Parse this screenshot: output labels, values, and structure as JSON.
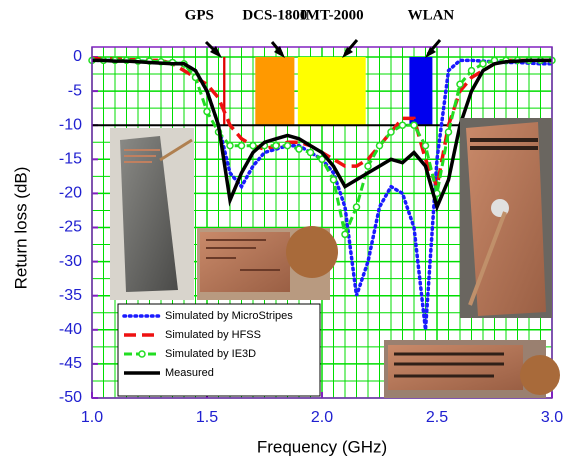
{
  "chart_data": {
    "type": "line",
    "x_label": "Frequency (GHz)",
    "y_label": "Return loss (dB)",
    "xlim": [
      1.0,
      3.0
    ],
    "ylim": [
      -50,
      0
    ],
    "xticks": [
      {
        "value": 1.0,
        "label": "1.0"
      },
      1.5,
      {
        "value": 2.0,
        "label": "2.0"
      },
      2.5,
      {
        "value": 3.0,
        "label": "3.0"
      }
    ],
    "yticks": [
      0,
      -5,
      -10,
      -15,
      -20,
      -25,
      -30,
      -35,
      -40,
      -45,
      -50
    ],
    "grid": true,
    "grid_color": "#00dd00",
    "minor_divisions": {
      "x": 10,
      "y": 2
    },
    "reference_line": -10,
    "band_y": [
      -10,
      0
    ],
    "bands": [
      {
        "label": "GPS",
        "x": [
          1.57,
          1.58
        ],
        "color": "#e00000"
      },
      {
        "label": "DCS-1800",
        "x": [
          1.71,
          1.88
        ],
        "color": "#ff9900"
      },
      {
        "label": "IMT-2000",
        "x": [
          1.895,
          2.19
        ],
        "color": "#ffff00"
      },
      {
        "label": "WLAN",
        "x": [
          2.38,
          2.48
        ],
        "color": "#0000ee"
      }
    ],
    "legend": "lower left",
    "x": [
      1.0,
      1.05,
      1.1,
      1.15,
      1.2,
      1.25,
      1.3,
      1.35,
      1.4,
      1.45,
      1.5,
      1.55,
      1.6,
      1.65,
      1.7,
      1.75,
      1.8,
      1.85,
      1.9,
      1.95,
      2.0,
      2.05,
      2.1,
      2.15,
      2.2,
      2.25,
      2.3,
      2.35,
      2.4,
      2.45,
      2.5,
      2.55,
      2.6,
      2.65,
      2.7,
      2.75,
      2.8,
      2.85,
      2.9,
      2.95,
      3.0
    ],
    "series": [
      {
        "name": "Simulated by MicroStripes",
        "color": "#1a1aff",
        "style": "dotted",
        "values": [
          -0.5,
          -0.5,
          -0.5,
          -0.5,
          -0.6,
          -0.6,
          -0.7,
          -0.8,
          -1,
          -2,
          -5,
          -10,
          -17,
          -19,
          -16,
          -14,
          -13.5,
          -13,
          -13,
          -14,
          -15,
          -17,
          -22,
          -35,
          -30,
          -22,
          -19,
          -20,
          -25,
          -40,
          -15,
          -2,
          -0.5,
          -0.5,
          -0.6,
          -0.7,
          -0.8,
          -0.8,
          -0.9,
          -1,
          -1
        ]
      },
      {
        "name": "Simulated by HFSS",
        "color": "#ee1111",
        "style": "dashed",
        "values": [
          -0.2,
          -0.3,
          -0.3,
          -0.4,
          -0.4,
          -0.5,
          -0.5,
          -1,
          -2,
          -3,
          -4,
          -6,
          -10,
          -12,
          -13,
          -13.5,
          -13,
          -12.5,
          -12.5,
          -13,
          -14,
          -15,
          -16,
          -16,
          -15,
          -13,
          -11,
          -9,
          -9,
          -15,
          -19,
          -10,
          -5,
          -3,
          -2,
          -1,
          -0.5,
          -0.5,
          -0.5,
          -0.5,
          -0.5
        ]
      },
      {
        "name": "Simulated by IE3D",
        "color": "#22dd22",
        "style": "circles",
        "values": [
          -0.5,
          -0.5,
          -0.5,
          -0.5,
          -0.6,
          -0.6,
          -0.7,
          -0.8,
          -1,
          -3,
          -8,
          -11,
          -13,
          -13,
          -13,
          -13,
          -13,
          -13,
          -13.5,
          -14,
          -15,
          -18,
          -26,
          -22,
          -16,
          -13,
          -11,
          -10,
          -10,
          -13,
          -20,
          -11,
          -4,
          -2,
          -1,
          -0.5,
          -0.5,
          -0.5,
          -0.5,
          -0.5,
          -0.5
        ]
      },
      {
        "name": "Measured",
        "color": "#000000",
        "style": "solid",
        "values": [
          -0.5,
          -0.5,
          -0.6,
          -0.6,
          -0.7,
          -0.8,
          -0.9,
          -1,
          -1,
          -2,
          -5,
          -10,
          -21,
          -17,
          -14,
          -12.5,
          -12,
          -11.5,
          -12,
          -13,
          -14,
          -16,
          -19,
          -18,
          -17,
          -16,
          -15,
          -15.5,
          -14,
          -16,
          -22,
          -18,
          -10,
          -5,
          -2,
          -1,
          -0.7,
          -0.6,
          -0.5,
          -0.5,
          -0.5
        ]
      }
    ]
  }
}
